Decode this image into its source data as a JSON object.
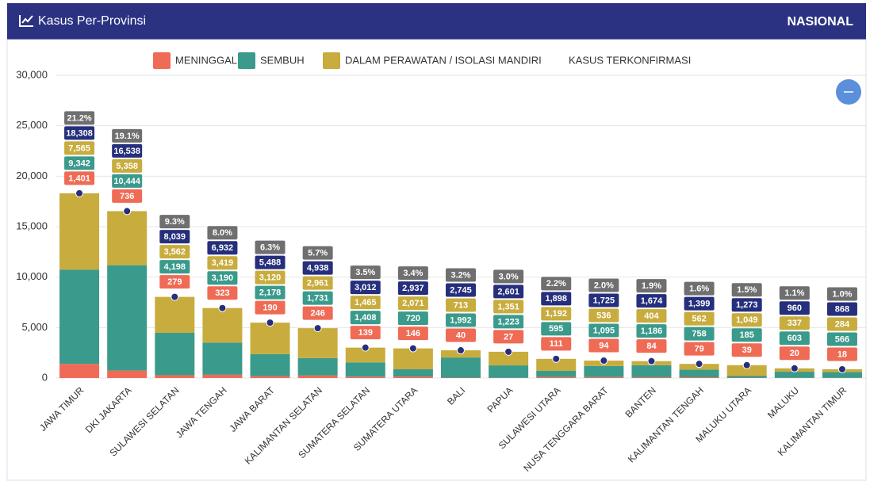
{
  "chart_data": {
    "type": "stacked_bar",
    "title": "Kasus Per-Provinsi",
    "scope_label": "NASIONAL",
    "categories": [
      "JAWA TIMUR",
      "DKI JAKARTA",
      "SULAWESI SELATAN",
      "JAWA TENGAH",
      "JAWA BARAT",
      "KALIMANTAN SELATAN",
      "SUMATERA SELATAN",
      "SUMATERA UTARA",
      "BALI",
      "PAPUA",
      "SULAWESI UTARA",
      "NUSA TENGGARA BARAT",
      "BANTEN",
      "KALIMANTAN TENGAH",
      "MALUKU UTARA",
      "MALUKU",
      "KALIMANTAN TIMUR"
    ],
    "series": [
      {
        "name": "MENINGGAL",
        "color": "#ef6b55",
        "values": [
          1401,
          736,
          279,
          323,
          190,
          246,
          139,
          146,
          40,
          27,
          111,
          94,
          84,
          79,
          39,
          20,
          18
        ],
        "value_labels": [
          "1,401",
          "736",
          "279",
          "323",
          "190",
          "246",
          "139",
          "146",
          "40",
          "27",
          "111",
          "94",
          "84",
          "79",
          "39",
          "20",
          "18"
        ]
      },
      {
        "name": "SEMBUH",
        "color": "#3a9a8c",
        "values": [
          9342,
          10444,
          4198,
          3190,
          2178,
          1731,
          1408,
          720,
          1992,
          1223,
          595,
          1095,
          1186,
          758,
          185,
          603,
          566
        ],
        "value_labels": [
          "9,342",
          "10,444",
          "4,198",
          "3,190",
          "2,178",
          "1,731",
          "1,408",
          "720",
          "1,992",
          "1,223",
          "595",
          "1,095",
          "1,186",
          "758",
          "185",
          "603",
          "566"
        ]
      },
      {
        "name": "DALAM PERAWATAN / ISOLASI MANDIRI",
        "color": "#c8ac3d",
        "values": [
          7565,
          5358,
          3562,
          3419,
          3120,
          2961,
          1465,
          2071,
          713,
          1351,
          1192,
          536,
          404,
          562,
          1049,
          337,
          284
        ],
        "value_labels": [
          "7,565",
          "5,358",
          "3,562",
          "3,419",
          "3,120",
          "2,961",
          "1,465",
          "2,071",
          "713",
          "1,351",
          "1,192",
          "536",
          "404",
          "562",
          "1,049",
          "337",
          "284"
        ]
      }
    ],
    "total": {
      "name": "KASUS TERKONFIRMASI",
      "color": "#252f7c",
      "values": [
        18308,
        16538,
        8039,
        6932,
        5488,
        4938,
        3012,
        2937,
        2745,
        2601,
        1898,
        1725,
        1674,
        1399,
        1273,
        960,
        868
      ],
      "value_labels": [
        "18,308",
        "16,538",
        "8,039",
        "6,932",
        "5,488",
        "4,938",
        "3,012",
        "2,937",
        "2,745",
        "2,601",
        "1,898",
        "1,725",
        "1,674",
        "1,399",
        "1,273",
        "960",
        "868"
      ]
    },
    "percent": {
      "color": "#6f6f6f",
      "values": [
        21.2,
        19.1,
        9.3,
        8.0,
        6.3,
        5.7,
        3.5,
        3.4,
        3.2,
        3.0,
        2.2,
        2.0,
        1.9,
        1.6,
        1.5,
        1.1,
        1.0
      ],
      "value_labels": [
        "21.2%",
        "19.1%",
        "9.3%",
        "8.0%",
        "6.3%",
        "5.7%",
        "3.5%",
        "3.4%",
        "3.2%",
        "3.0%",
        "2.2%",
        "2.0%",
        "1.9%",
        "1.6%",
        "1.5%",
        "1.1%",
        "1.0%"
      ]
    },
    "ylim": [
      0,
      30000
    ],
    "yticks": [
      0,
      {
        "value": 5000,
        "label": "5,000"
      },
      {
        "value": 10000,
        "label": "10,000"
      },
      {
        "value": 15000,
        "label": "15,000"
      },
      {
        "value": 20000,
        "label": "20,000"
      },
      {
        "value": 25000,
        "label": "25,000"
      },
      {
        "value": 30000,
        "label": "30,000"
      }
    ],
    "grid": true
  }
}
